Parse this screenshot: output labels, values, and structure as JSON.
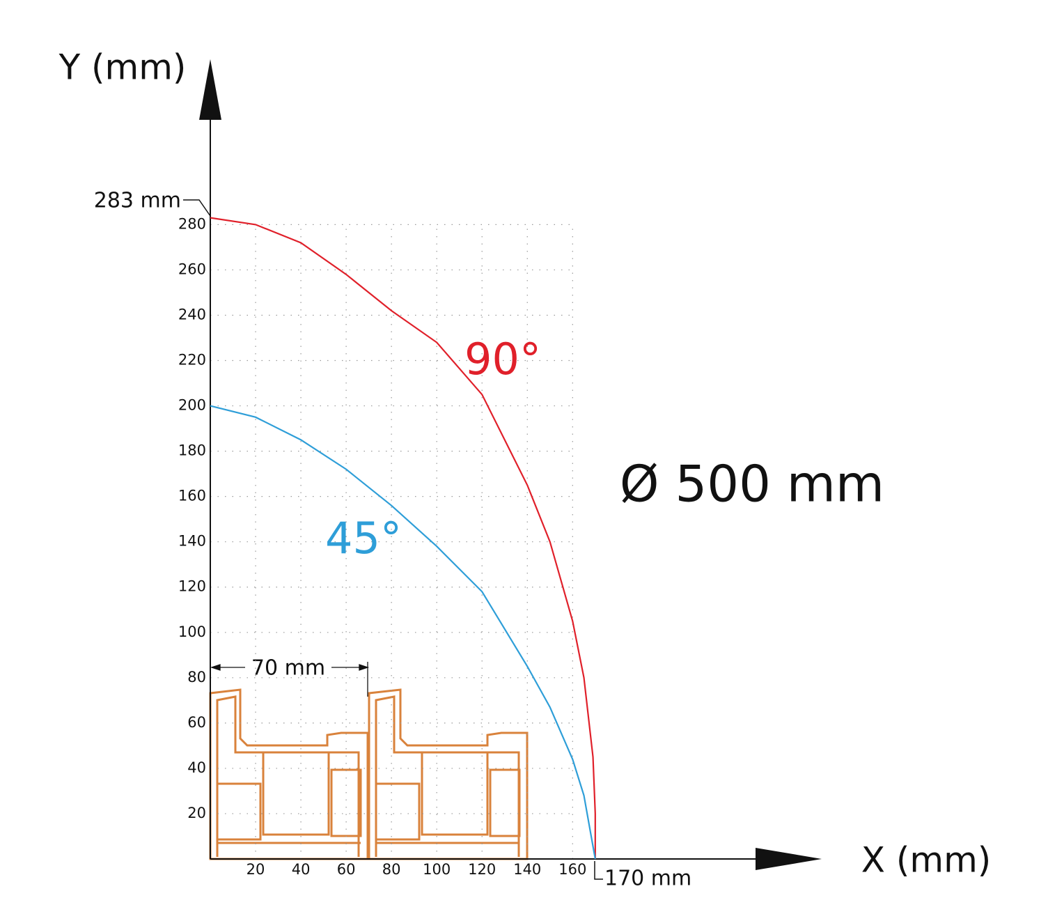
{
  "chart_data": {
    "type": "line",
    "x_label": "X (mm)",
    "y_label": "Y (mm)",
    "xlim": [
      0,
      270
    ],
    "ylim": [
      0,
      353
    ],
    "xticks": [
      20,
      40,
      60,
      80,
      100,
      120,
      140,
      160
    ],
    "yticks": [
      20,
      40,
      60,
      80,
      100,
      120,
      140,
      160,
      180,
      200,
      220,
      240,
      260,
      280
    ],
    "grid": true,
    "series": [
      {
        "name": "90°",
        "color": "#e0202a",
        "x": [
          0,
          20,
          40,
          60,
          80,
          100,
          120,
          140,
          150,
          160,
          165,
          169,
          170,
          170
        ],
        "values": [
          283,
          280,
          272,
          258,
          242,
          228,
          205,
          165,
          140,
          105,
          80,
          45,
          20,
          0
        ]
      },
      {
        "name": "45°",
        "color": "#2e9ed8",
        "x": [
          0,
          20,
          40,
          60,
          80,
          100,
          120,
          140,
          150,
          160,
          165,
          170
        ],
        "values": [
          200,
          195,
          185,
          172,
          156,
          138,
          118,
          85,
          67,
          44,
          28,
          0
        ]
      }
    ],
    "annotations": [
      "283 mm",
      "170 mm",
      "70 mm",
      "Ø 500 mm"
    ]
  }
}
